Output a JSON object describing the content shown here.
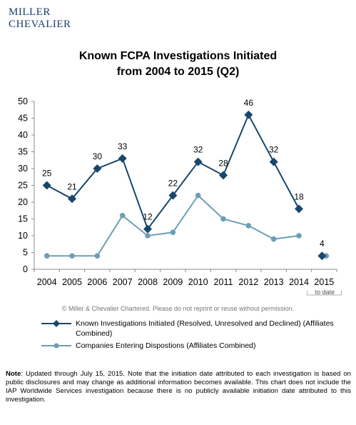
{
  "logo": {
    "line1": "MILLER",
    "line2": "CHEVALIER"
  },
  "title_line1": "Known FCPA Investigations Initiated",
  "title_line2": "from 2004 to 2015 (Q2)",
  "chart_data": {
    "type": "line",
    "title": "Known FCPA Investigations Initiated from 2004 to 2015 (Q2)",
    "categories": [
      "2004",
      "2005",
      "2006",
      "2007",
      "2008",
      "2009",
      "2010",
      "2011",
      "2012",
      "2013",
      "2014",
      "2015"
    ],
    "x_sublabel": "to date",
    "ylim": [
      0,
      50
    ],
    "yticks": [
      0,
      5,
      10,
      15,
      20,
      25,
      30,
      35,
      40,
      45,
      50
    ],
    "grid": false,
    "legend_position": "bottom",
    "series": [
      {
        "name": "Known Investigations Initiated (Resolved, Unresolved and Declined) (Affiliates Combined)",
        "color": "#17476b",
        "marker": "diamond",
        "values": [
          25,
          21,
          30,
          33,
          12,
          22,
          32,
          28,
          46,
          32,
          18,
          4
        ],
        "labels": [
          "25",
          "21",
          "30",
          "33",
          "12",
          "22",
          "32",
          "28",
          "46",
          "32",
          "18",
          "4"
        ]
      },
      {
        "name": "Companies Entering Dispostions (Affiliates Combined)",
        "color": "#6c9fb5",
        "marker": "circle",
        "values": [
          4,
          4,
          4,
          16,
          10,
          11,
          22,
          15,
          13,
          9,
          10,
          4
        ]
      }
    ]
  },
  "copyright": "© Miller & Chevalier Chartered. Please do not reprint or reuse without permission.",
  "note_label": "Note",
  "note_text": ": Updated through July 15, 2015. Note that the initiation date attributed to each investigation is based on public disclosures and may change as additional information becomes available. This chart does not include the IAP Worldwide Services investigation because there is no publicly available initiation date attributed to this investigation."
}
